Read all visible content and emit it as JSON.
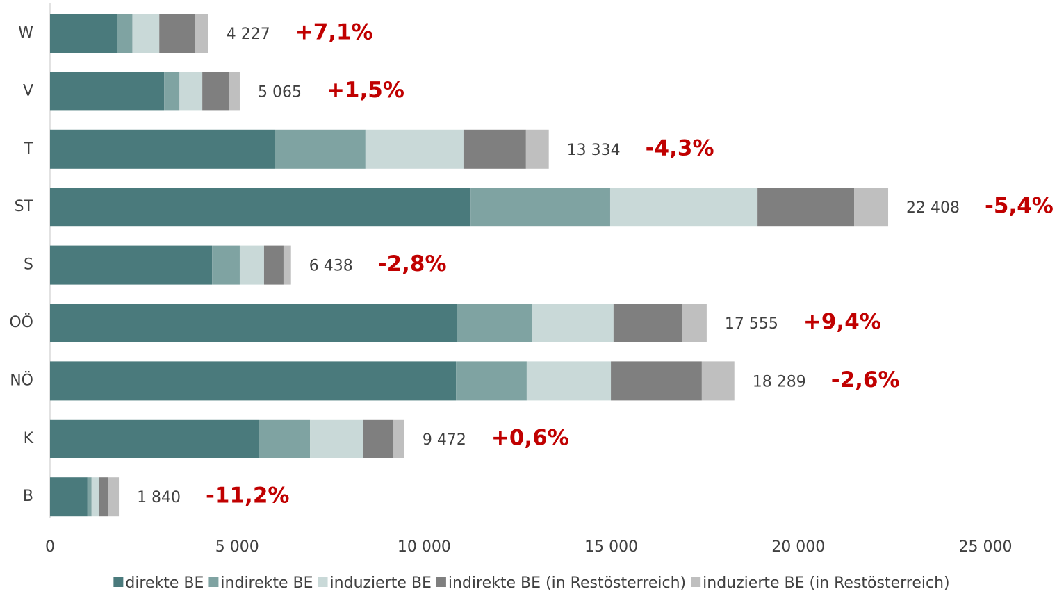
{
  "chart_data": {
    "type": "stacked-bar-horizontal",
    "categories": [
      "W",
      "V",
      "T",
      "ST",
      "S",
      "OÖ",
      "NÖ",
      "K",
      "B"
    ],
    "series": [
      {
        "name": "direkte BE",
        "color": "#4a7a7c",
        "values": [
          1800,
          3050,
          6000,
          11240,
          4330,
          10880,
          10850,
          5590,
          1000
        ]
      },
      {
        "name": "indirekte BE",
        "color": "#7fa3a2",
        "values": [
          400,
          410,
          2430,
          3730,
          740,
          2010,
          1890,
          1360,
          110
        ]
      },
      {
        "name": "induzierte BE",
        "color": "#c9d9d8",
        "values": [
          720,
          610,
          2620,
          3940,
          650,
          2170,
          2250,
          1410,
          190
        ]
      },
      {
        "name": "indirekte BE (in Restösterreich)",
        "color": "#7f7f7f",
        "values": [
          950,
          720,
          1670,
          2580,
          520,
          1840,
          2430,
          820,
          260
        ]
      },
      {
        "name": "induzierte BE (in Restösterreich)",
        "color": "#bfbfbf",
        "values": [
          360,
          280,
          610,
          910,
          200,
          650,
          870,
          290,
          280
        ]
      }
    ],
    "totals": {
      "values": [
        4227,
        5065,
        13334,
        22408,
        6438,
        17555,
        18289,
        9472,
        1840
      ],
      "value_labels": [
        "4 227",
        "5 065",
        "13 334",
        "22 408",
        "6 438",
        "17 555",
        "18 289",
        "9 472",
        "1 840"
      ]
    },
    "changes": {
      "values": [
        7.1,
        1.5,
        -4.3,
        -5.4,
        -2.8,
        9.4,
        -2.6,
        0.6,
        -11.2
      ],
      "value_labels": [
        "+7,1%",
        "+1,5%",
        "-4,3%",
        "-5,4%",
        "-2,8%",
        "+9,4%",
        "-2,6%",
        "+0,6%",
        "-11,2%"
      ]
    },
    "xlim": [
      0,
      25000
    ],
    "xticks": [
      0,
      {
        "value": 5000,
        "label": "5 000"
      },
      {
        "value": 10000,
        "label": "10 000"
      },
      {
        "value": 15000,
        "label": "15 000"
      },
      {
        "value": 20000,
        "label": "20 000"
      },
      {
        "value": 25000,
        "label": "25 000"
      }
    ],
    "legend": "bottom"
  }
}
